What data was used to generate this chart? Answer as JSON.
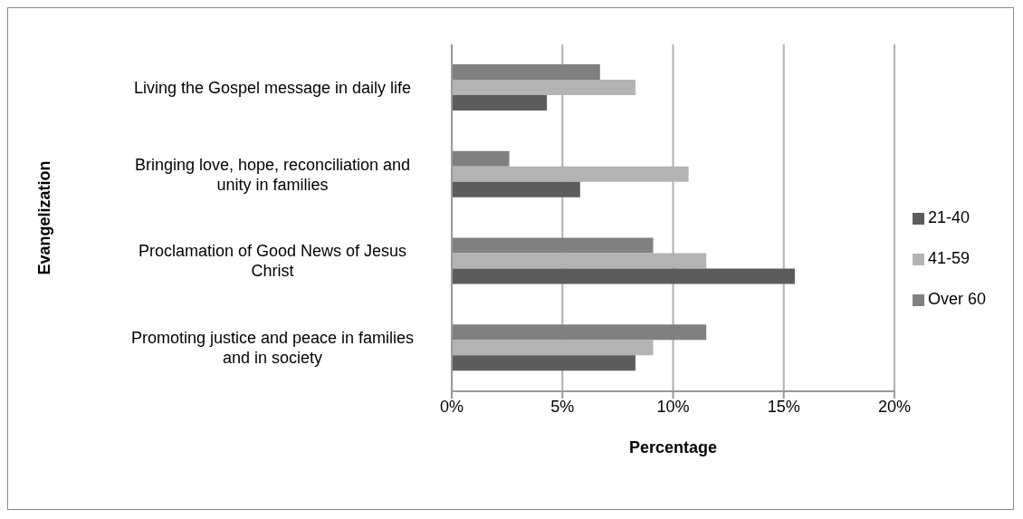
{
  "chart_data": {
    "type": "bar",
    "orientation": "horizontal",
    "xlabel": "Percentage",
    "ylabel": "Evangelization",
    "categories": [
      "Living the Gospel message in daily life",
      "Bringing love, hope, reconciliation and unity in families",
      "Proclamation of Good News of Jesus Christ",
      "Promoting justice and peace in families and in society"
    ],
    "series": [
      {
        "name": "Over 60",
        "color": "#808080",
        "values": [
          6.7,
          2.6,
          9.1,
          11.5
        ]
      },
      {
        "name": "41-59",
        "color": "#b3b3b3",
        "values": [
          8.3,
          10.7,
          11.5,
          9.1
        ]
      },
      {
        "name": "21-40",
        "color": "#5c5c5c",
        "values": [
          4.3,
          5.8,
          15.5,
          8.3
        ]
      }
    ],
    "xlim": [
      0,
      20
    ],
    "xticks": [
      {
        "value": 0,
        "label": "0%"
      },
      {
        "value": 5,
        "label": "5%"
      },
      {
        "value": 10,
        "label": "10%"
      },
      {
        "value": 15,
        "label": "15%"
      },
      {
        "value": 20,
        "label": "20%"
      }
    ],
    "grid": "x",
    "legend": "right"
  }
}
